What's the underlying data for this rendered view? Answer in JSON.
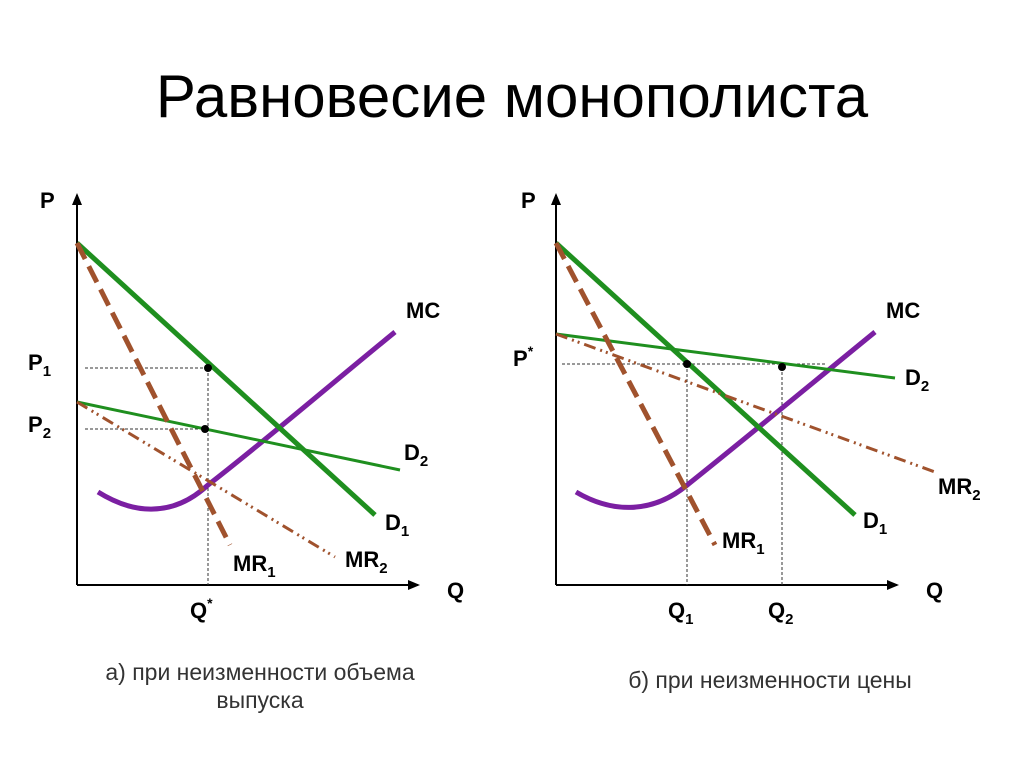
{
  "title": "Равновесие монополиста",
  "colors": {
    "demand": "#1f8f1f",
    "mr": "#a0522d",
    "mc": "#7b1fa2",
    "axis": "#000000",
    "guide": "#333333"
  },
  "left_panel": {
    "y_axis": "P",
    "x_axis": "Q",
    "price_1": {
      "base": "P",
      "sub": "1"
    },
    "price_2": {
      "base": "P",
      "sub": "2"
    },
    "quantity": {
      "base": "Q",
      "sup": "*"
    },
    "mc": "MC",
    "demand_1": {
      "base": "D",
      "sub": "1"
    },
    "demand_2": {
      "base": "D",
      "sub": "2"
    },
    "mr_1": {
      "base": "MR",
      "sub": "1"
    },
    "mr_2": {
      "base": "MR",
      "sub": "2"
    },
    "caption_line1": "а) при неизменности объема",
    "caption_line2": "выпуска"
  },
  "right_panel": {
    "y_axis": "P",
    "x_axis": "Q",
    "price": {
      "base": "P",
      "sup": "*"
    },
    "quantity_1": {
      "base": "Q",
      "sub": "1"
    },
    "quantity_2": {
      "base": "Q",
      "sub": "2"
    },
    "mc": "MC",
    "demand_1": {
      "base": "D",
      "sub": "1"
    },
    "demand_2": {
      "base": "D",
      "sub": "2"
    },
    "mr_1": {
      "base": "MR",
      "sub": "1"
    },
    "mr_2": {
      "base": "MR",
      "sub": "2"
    },
    "caption": "б) при неизменности цены"
  }
}
